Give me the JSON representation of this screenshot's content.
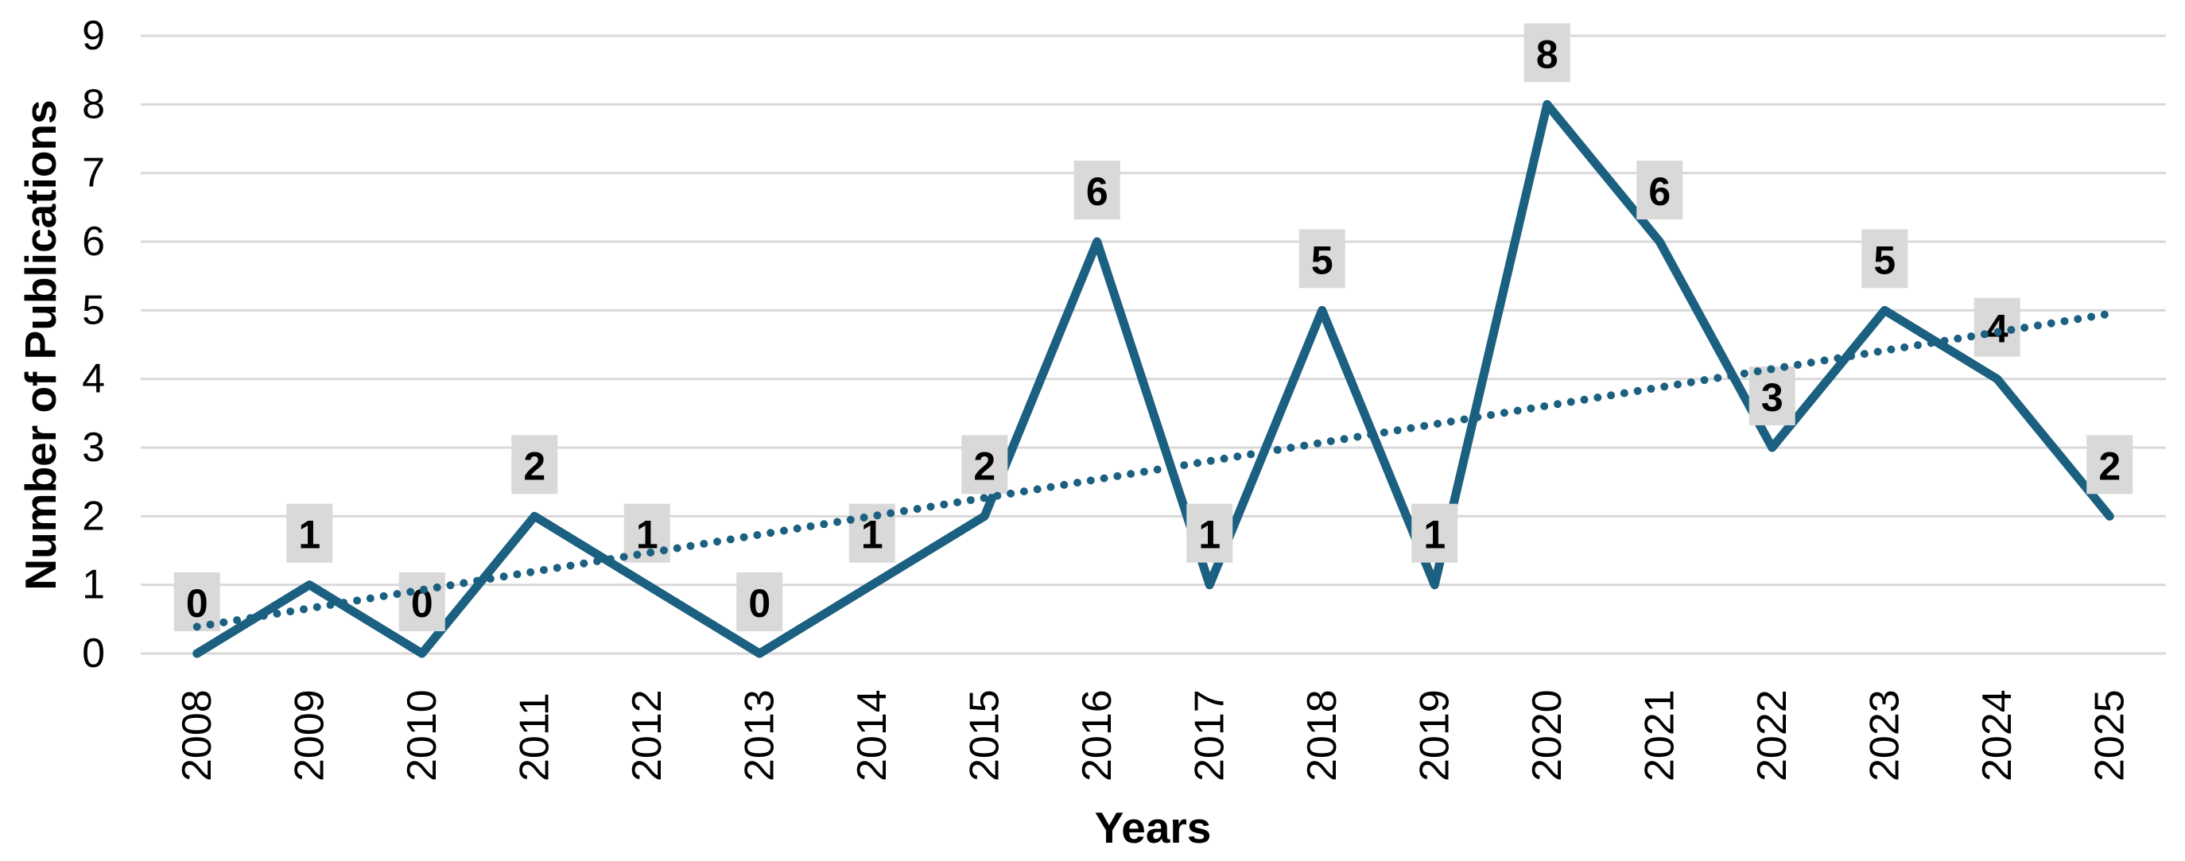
{
  "chart_data": {
    "type": "line",
    "title": "",
    "xlabel": "Years",
    "ylabel": "Number of Publications",
    "categories": [
      "2008",
      "2009",
      "2010",
      "2011",
      "2012",
      "2013",
      "2014",
      "2015",
      "2016",
      "2017",
      "2018",
      "2019",
      "2020",
      "2021",
      "2022",
      "2023",
      "2024",
      "2025"
    ],
    "series": [
      {
        "name": "Number of Publications",
        "values": [
          0,
          1,
          0,
          2,
          1,
          0,
          1,
          2,
          6,
          1,
          5,
          1,
          8,
          6,
          3,
          5,
          4,
          2
        ],
        "color": "#1B6080",
        "line_style": "solid",
        "data_labels": [
          0,
          1,
          0,
          2,
          1,
          0,
          1,
          2,
          6,
          1,
          5,
          1,
          8,
          6,
          3,
          5,
          4,
          2
        ]
      }
    ],
    "trendline": {
      "type": "linear",
      "line_style": "dotted",
      "color": "#1B6080",
      "start_value": 0.39,
      "end_value": 4.95
    },
    "ylim": [
      0,
      9
    ],
    "ytick_step": 1,
    "ytick_labels": [
      "0",
      "1",
      "2",
      "3",
      "4",
      "5",
      "6",
      "7",
      "8",
      "9"
    ],
    "x_tick_rotation": -90,
    "grid": "horizontal",
    "legend": "none",
    "colors": {
      "gridline": "#D9D9D9",
      "data_label_background": "#D9D9D9",
      "text": "#000000",
      "background": "#FFFFFF"
    }
  }
}
